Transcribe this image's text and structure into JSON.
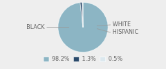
{
  "chart_data": {
    "type": "pie",
    "categories": [
      "98.2%",
      "1.3%",
      "0.5%"
    ],
    "values": [
      98.2,
      1.3,
      0.5
    ],
    "colors": [
      "#8cb5c4",
      "#2b4a6b",
      "#dce8ee"
    ],
    "annotations": [
      "BLACK",
      "WHITE",
      "HISPANIC"
    ],
    "legend": "bottom"
  }
}
